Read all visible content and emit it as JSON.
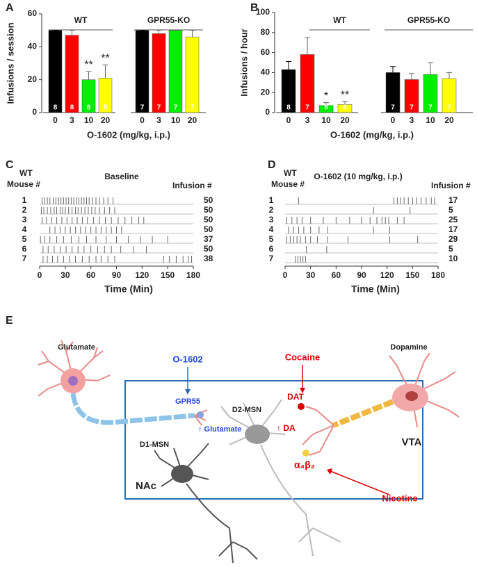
{
  "chart_data": [
    {
      "type": "bar",
      "panel": "A",
      "ylabel": "Infusions / session",
      "xlabel": "O-1602 (mg/kg, i.p.)",
      "ylim": [
        0,
        60
      ],
      "yticks": [
        0,
        20,
        40,
        60
      ],
      "colors": [
        "#000000",
        "#ff0000",
        "#00ee00",
        "#ffff00"
      ],
      "groups": [
        {
          "name": "WT",
          "categories": [
            "0",
            "3",
            "10",
            "20"
          ],
          "values": [
            50,
            47,
            20,
            21
          ],
          "errors": [
            0,
            3,
            5,
            8
          ],
          "n": [
            8,
            8,
            8,
            8
          ],
          "significance": [
            null,
            null,
            "**",
            "**"
          ]
        },
        {
          "name": "GPR55-KO",
          "categories": [
            "0",
            "3",
            "10",
            "20"
          ],
          "values": [
            50,
            48,
            50,
            46
          ],
          "errors": [
            0,
            2,
            0,
            4
          ],
          "n": [
            7,
            7,
            7,
            7
          ],
          "significance": [
            null,
            null,
            null,
            null
          ]
        }
      ]
    },
    {
      "type": "bar",
      "panel": "B",
      "ylabel": "Infusions / hour",
      "xlabel": "O-1602 (mg/kg, i.p.)",
      "ylim": [
        0,
        100
      ],
      "yticks": [
        0,
        20,
        40,
        60,
        80,
        100
      ],
      "colors": [
        "#000000",
        "#ff0000",
        "#00ee00",
        "#ffff00"
      ],
      "groups": [
        {
          "name": "WT",
          "categories": [
            "0",
            "3",
            "10",
            "20"
          ],
          "values": [
            43,
            58,
            7,
            8
          ],
          "errors": [
            8,
            17,
            3,
            3
          ],
          "n": [
            8,
            7,
            8,
            8
          ],
          "significance": [
            null,
            null,
            "*",
            "**"
          ]
        },
        {
          "name": "GPR55-KO",
          "categories": [
            "0",
            "3",
            "10",
            "20"
          ],
          "values": [
            40,
            33,
            38,
            34
          ],
          "errors": [
            6,
            6,
            12,
            6
          ],
          "n": [
            7,
            7,
            7,
            7
          ],
          "significance": [
            null,
            null,
            null,
            null
          ]
        }
      ]
    },
    {
      "type": "raster",
      "panel": "C",
      "title": "Baseline",
      "row_header": [
        "WT",
        "Mouse #"
      ],
      "count_header": "Infusion #",
      "xlabel": "Time (Min)",
      "xlim": [
        0,
        180
      ],
      "xticks": [
        0,
        30,
        60,
        90,
        120,
        150,
        180
      ],
      "rows": [
        {
          "name": 1,
          "count": 50,
          "events": [
            3,
            6,
            9,
            12,
            16,
            19,
            22,
            25,
            28,
            31,
            34,
            37,
            40,
            43,
            46,
            49,
            52,
            55,
            58,
            62,
            66,
            70,
            75,
            80,
            86
          ]
        },
        {
          "name": 2,
          "count": 50,
          "events": [
            2,
            5,
            9,
            13,
            17,
            20,
            24,
            27,
            30,
            34,
            38,
            42,
            45,
            49,
            53,
            57,
            61,
            65,
            70,
            76,
            82,
            88
          ]
        },
        {
          "name": 3,
          "count": 50,
          "events": [
            3,
            8,
            14,
            20,
            26,
            32,
            38,
            44,
            50,
            56,
            63,
            70,
            77,
            84,
            92,
            100,
            108,
            116,
            122
          ]
        },
        {
          "name": 4,
          "count": 50,
          "events": [
            12,
            18,
            24,
            30,
            36,
            42,
            48,
            54,
            60,
            66,
            72,
            78,
            84,
            90,
            96
          ]
        },
        {
          "name": 5,
          "count": 37,
          "events": [
            1,
            6,
            12,
            20,
            28,
            37,
            46,
            55,
            66,
            78,
            90,
            104,
            118,
            132,
            150
          ]
        },
        {
          "name": 6,
          "count": 50,
          "events": [
            4,
            10,
            17,
            24,
            31,
            38,
            45,
            52,
            60,
            68,
            76,
            84,
            95,
            110,
            125
          ]
        },
        {
          "name": 7,
          "count": 38,
          "events": [
            4,
            9,
            15,
            21,
            28,
            35,
            42,
            50,
            58,
            66,
            72,
            80,
            88,
            145,
            152,
            160,
            168,
            174,
            178
          ]
        }
      ]
    },
    {
      "type": "raster",
      "panel": "D",
      "title": "O-1602 (10 mg/kg, i.p.)",
      "row_header": [
        "WT",
        "Mouse #"
      ],
      "count_header": "Infusion #",
      "xlabel": "Time (Min)",
      "xlim": [
        0,
        180
      ],
      "xticks": [
        0,
        30,
        60,
        90,
        120,
        150,
        180
      ],
      "rows": [
        {
          "name": 1,
          "count": 17,
          "events": [
            16,
            128,
            132,
            136,
            140,
            145,
            150,
            155,
            160,
            166,
            172,
            176
          ]
        },
        {
          "name": 2,
          "count": 5,
          "events": [
            104,
            147
          ]
        },
        {
          "name": 3,
          "count": 25,
          "events": [
            2,
            8,
            14,
            20,
            30,
            45,
            60,
            76,
            90,
            100,
            108,
            114,
            118,
            122,
            132,
            140
          ]
        },
        {
          "name": 4,
          "count": 17,
          "events": [
            4,
            10,
            16,
            22,
            30,
            40,
            50,
            104,
            123
          ]
        },
        {
          "name": 5,
          "count": 29,
          "events": [
            2,
            6,
            10,
            14,
            18,
            24,
            30,
            38,
            50,
            74,
            123,
            156
          ]
        },
        {
          "name": 6,
          "count": 5,
          "events": [
            25,
            49
          ]
        },
        {
          "name": 7,
          "count": 10,
          "events": [
            12,
            15,
            18,
            21,
            24
          ]
        }
      ]
    }
  ],
  "diagram": {
    "panel": "E",
    "labels": {
      "glutamate": "Glutamate",
      "o1602": "O-1602",
      "gpr55": "GPR55",
      "up_glutamate": "↑ Glutamate",
      "d2": "D2-MSN",
      "up_da": "↑ DA",
      "d1": "D1-MSN",
      "nac": "NAc",
      "cocaine": "Cocaine",
      "dat": "DAT",
      "dopamine": "Dopamine",
      "vta": "VTA",
      "receptor": "α₄β₂",
      "nicotine": "Nicotine"
    }
  }
}
